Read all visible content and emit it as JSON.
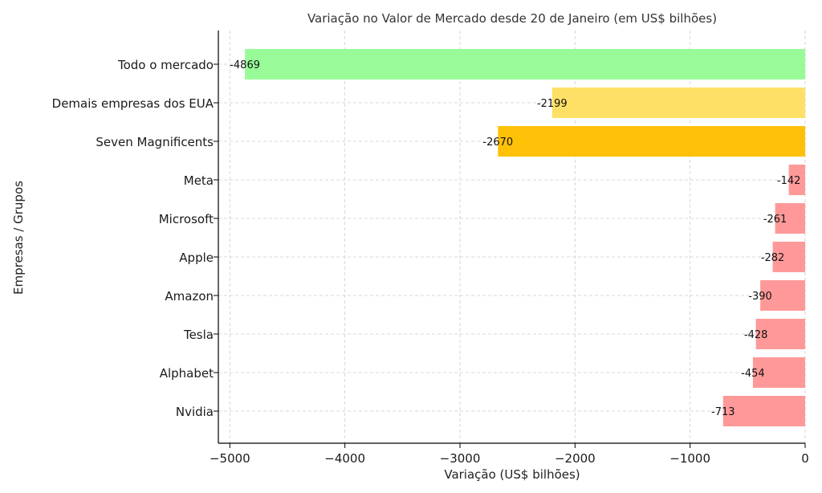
{
  "chart_data": {
    "type": "bar",
    "orientation": "horizontal",
    "title": "Variação no Valor de Mercado desde 20 de Janeiro (em US$ bilhões)",
    "xlabel": "Variação (US$ bilhões)",
    "ylabel": "Empresas / Grupos",
    "xlim": [
      -5100,
      0
    ],
    "xticks": [
      -5000,
      -4000,
      -3000,
      -2000,
      -1000,
      0
    ],
    "xtick_labels": [
      "−5000",
      "−4000",
      "−3000",
      "−2000",
      "−1000",
      "0"
    ],
    "grid": true,
    "categories": [
      "Todo o mercado",
      "Demais empresas dos EUA",
      "Seven Magnificents",
      "Meta",
      "Microsoft",
      "Apple",
      "Amazon",
      "Tesla",
      "Alphabet",
      "Nvidia"
    ],
    "values": [
      -4869,
      -2199,
      -2670,
      -142,
      -261,
      -282,
      -390,
      -428,
      -454,
      -713
    ],
    "colors": [
      "#98fb98",
      "#ffe066",
      "#ffc107",
      "#ff9999",
      "#ff9999",
      "#ff9999",
      "#ff9999",
      "#ff9999",
      "#ff9999",
      "#ff9999"
    ]
  }
}
